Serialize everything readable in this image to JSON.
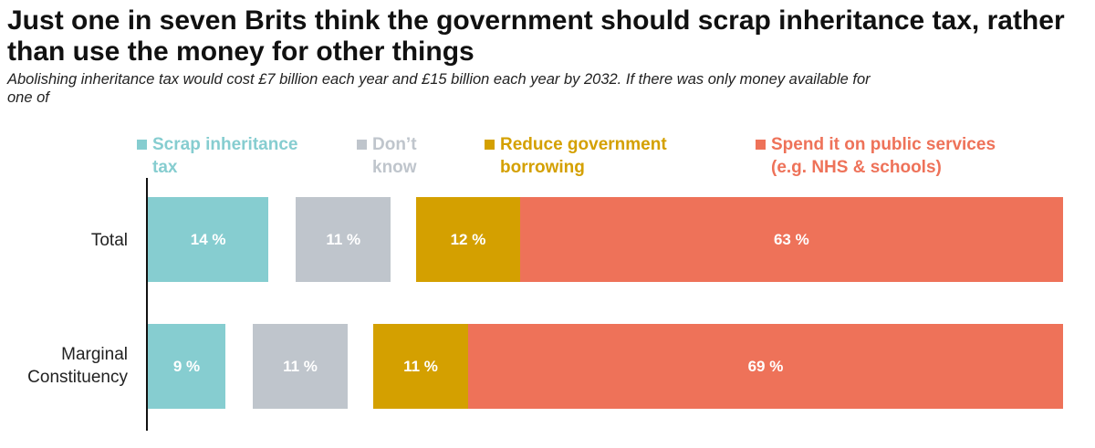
{
  "header": {
    "title": "Just one in seven Brits think the government should scrap inheritance tax, rather than use the money for other things",
    "subtitle": "Abolishing inheritance tax would cost £7 billion each year and £15 billion each year by 2032. If there was only money available for one of"
  },
  "colors": {
    "scrap": "#86CDD0",
    "dont_know": "#BFC5CC",
    "reduce": "#D4A000",
    "spend": "#EE7259"
  },
  "chart_data": {
    "type": "bar",
    "orientation": "horizontal-stacked",
    "title": "Just one in seven Brits think the government should scrap inheritance tax, rather than use the money for other things",
    "categories": [
      "Total",
      "Marginal Constituency"
    ],
    "series": [
      {
        "name": "Scrap inheritance tax",
        "values": [
          14,
          9
        ]
      },
      {
        "name": "Don’t know",
        "values": [
          11,
          11
        ]
      },
      {
        "name": "Reduce government borrowing",
        "values": [
          12,
          11
        ]
      },
      {
        "name": "Spend it on public services (e.g. NHS & schools)",
        "values": [
          63,
          69
        ]
      }
    ],
    "value_suffix": " %",
    "legend_position": "top",
    "xlim": [
      0,
      100
    ]
  }
}
